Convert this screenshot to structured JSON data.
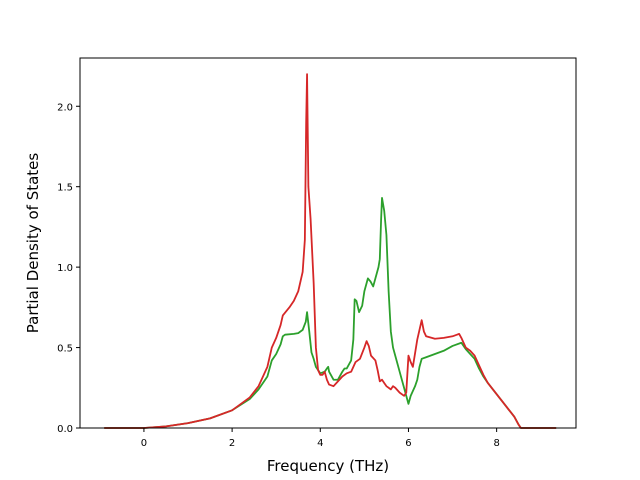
{
  "chart_data": {
    "type": "line",
    "xlabel": "Frequency (THz)",
    "ylabel": "Partial Density of States",
    "xlim": [
      -1.45,
      9.8
    ],
    "ylim": [
      0,
      2.3
    ],
    "xticks": [
      0,
      2,
      4,
      6,
      8
    ],
    "yticks": [
      0.0,
      0.5,
      1.0,
      1.5,
      2.0
    ],
    "x_tick_labels": [
      "0",
      "2",
      "4",
      "6",
      "8"
    ],
    "y_tick_labels": [
      "0.0",
      "0.5",
      "1.0",
      "1.5",
      "2.0"
    ],
    "grid": false,
    "series": [
      {
        "color": "#2ca02c",
        "points": [
          [
            -0.9,
            0
          ],
          [
            0,
            0
          ],
          [
            0.5,
            0.01
          ],
          [
            1.0,
            0.03
          ],
          [
            1.5,
            0.06
          ],
          [
            2.0,
            0.11
          ],
          [
            2.4,
            0.18
          ],
          [
            2.6,
            0.24
          ],
          [
            2.8,
            0.32
          ],
          [
            2.9,
            0.42
          ],
          [
            3.0,
            0.46
          ],
          [
            3.1,
            0.52
          ],
          [
            3.15,
            0.57
          ],
          [
            3.2,
            0.58
          ],
          [
            3.4,
            0.585
          ],
          [
            3.5,
            0.59
          ],
          [
            3.6,
            0.61
          ],
          [
            3.67,
            0.66
          ],
          [
            3.7,
            0.72
          ],
          [
            3.75,
            0.6
          ],
          [
            3.8,
            0.47
          ],
          [
            3.85,
            0.43
          ],
          [
            3.9,
            0.38
          ],
          [
            4.0,
            0.34
          ],
          [
            4.1,
            0.35
          ],
          [
            4.15,
            0.37
          ],
          [
            4.18,
            0.38
          ],
          [
            4.2,
            0.35
          ],
          [
            4.3,
            0.3
          ],
          [
            4.4,
            0.3
          ],
          [
            4.5,
            0.35
          ],
          [
            4.55,
            0.37
          ],
          [
            4.6,
            0.37
          ],
          [
            4.7,
            0.42
          ],
          [
            4.75,
            0.55
          ],
          [
            4.78,
            0.8
          ],
          [
            4.82,
            0.79
          ],
          [
            4.88,
            0.72
          ],
          [
            4.95,
            0.76
          ],
          [
            5.0,
            0.85
          ],
          [
            5.08,
            0.93
          ],
          [
            5.14,
            0.91
          ],
          [
            5.2,
            0.88
          ],
          [
            5.25,
            0.93
          ],
          [
            5.32,
            1.0
          ],
          [
            5.35,
            1.05
          ],
          [
            5.38,
            1.3
          ],
          [
            5.4,
            1.43
          ],
          [
            5.45,
            1.35
          ],
          [
            5.5,
            1.2
          ],
          [
            5.55,
            0.85
          ],
          [
            5.6,
            0.6
          ],
          [
            5.65,
            0.5
          ],
          [
            5.7,
            0.45
          ],
          [
            5.8,
            0.35
          ],
          [
            5.9,
            0.25
          ],
          [
            6.0,
            0.15
          ],
          [
            6.05,
            0.2
          ],
          [
            6.15,
            0.26
          ],
          [
            6.2,
            0.3
          ],
          [
            6.25,
            0.38
          ],
          [
            6.3,
            0.43
          ],
          [
            6.4,
            0.44
          ],
          [
            6.6,
            0.46
          ],
          [
            6.8,
            0.48
          ],
          [
            7.0,
            0.51
          ],
          [
            7.2,
            0.53
          ],
          [
            7.3,
            0.49
          ],
          [
            7.4,
            0.46
          ],
          [
            7.5,
            0.43
          ],
          [
            7.6,
            0.37
          ],
          [
            7.7,
            0.32
          ],
          [
            7.8,
            0.28
          ],
          [
            8.0,
            0.21
          ],
          [
            8.2,
            0.14
          ],
          [
            8.4,
            0.07
          ],
          [
            8.5,
            0.02
          ],
          [
            8.55,
            0
          ],
          [
            9.35,
            0
          ]
        ]
      },
      {
        "color": "#d62728",
        "points": [
          [
            -0.9,
            0
          ],
          [
            0,
            0
          ],
          [
            0.5,
            0.01
          ],
          [
            1.0,
            0.03
          ],
          [
            1.5,
            0.06
          ],
          [
            2.0,
            0.11
          ],
          [
            2.4,
            0.19
          ],
          [
            2.6,
            0.26
          ],
          [
            2.8,
            0.38
          ],
          [
            2.9,
            0.5
          ],
          [
            3.0,
            0.56
          ],
          [
            3.1,
            0.64
          ],
          [
            3.15,
            0.7
          ],
          [
            3.3,
            0.75
          ],
          [
            3.4,
            0.79
          ],
          [
            3.5,
            0.85
          ],
          [
            3.6,
            0.97
          ],
          [
            3.65,
            1.17
          ],
          [
            3.68,
            1.9
          ],
          [
            3.7,
            2.2
          ],
          [
            3.73,
            1.5
          ],
          [
            3.78,
            1.3
          ],
          [
            3.85,
            0.9
          ],
          [
            3.9,
            0.5
          ],
          [
            3.95,
            0.36
          ],
          [
            4.0,
            0.33
          ],
          [
            4.05,
            0.33
          ],
          [
            4.1,
            0.35
          ],
          [
            4.15,
            0.3
          ],
          [
            4.2,
            0.27
          ],
          [
            4.3,
            0.26
          ],
          [
            4.4,
            0.29
          ],
          [
            4.5,
            0.32
          ],
          [
            4.6,
            0.34
          ],
          [
            4.7,
            0.35
          ],
          [
            4.8,
            0.41
          ],
          [
            4.9,
            0.43
          ],
          [
            5.0,
            0.5
          ],
          [
            5.05,
            0.54
          ],
          [
            5.1,
            0.51
          ],
          [
            5.15,
            0.45
          ],
          [
            5.25,
            0.42
          ],
          [
            5.3,
            0.36
          ],
          [
            5.35,
            0.29
          ],
          [
            5.4,
            0.3
          ],
          [
            5.45,
            0.28
          ],
          [
            5.5,
            0.26
          ],
          [
            5.6,
            0.24
          ],
          [
            5.65,
            0.26
          ],
          [
            5.7,
            0.25
          ],
          [
            5.8,
            0.22
          ],
          [
            5.9,
            0.2
          ],
          [
            5.95,
            0.22
          ],
          [
            6.0,
            0.45
          ],
          [
            6.05,
            0.41
          ],
          [
            6.1,
            0.38
          ],
          [
            6.2,
            0.55
          ],
          [
            6.3,
            0.67
          ],
          [
            6.35,
            0.6
          ],
          [
            6.4,
            0.57
          ],
          [
            6.6,
            0.555
          ],
          [
            6.8,
            0.56
          ],
          [
            7.0,
            0.57
          ],
          [
            7.1,
            0.58
          ],
          [
            7.15,
            0.585
          ],
          [
            7.2,
            0.56
          ],
          [
            7.3,
            0.5
          ],
          [
            7.4,
            0.48
          ],
          [
            7.5,
            0.45
          ],
          [
            7.6,
            0.39
          ],
          [
            7.7,
            0.33
          ],
          [
            7.8,
            0.28
          ],
          [
            8.0,
            0.21
          ],
          [
            8.2,
            0.14
          ],
          [
            8.4,
            0.07
          ],
          [
            8.5,
            0.02
          ],
          [
            8.55,
            0
          ],
          [
            9.35,
            0
          ]
        ]
      }
    ]
  }
}
